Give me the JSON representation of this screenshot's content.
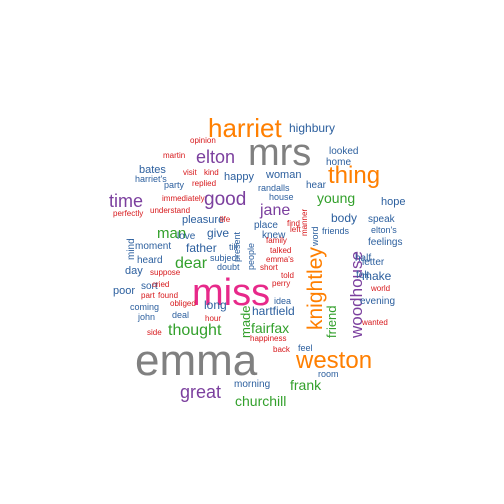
{
  "palette": {
    "gray": "#808080",
    "orange": "#FF7F00",
    "purple": "#7B3F9E",
    "green": "#33A02C",
    "blue": "#2C5F9E",
    "red": "#D7191C",
    "pink": "#E7298A"
  },
  "words": [
    {
      "text": "emma",
      "color": "gray",
      "weight": 100
    },
    {
      "text": "miss",
      "color": "pink",
      "weight": 88
    },
    {
      "text": "mrs",
      "color": "gray",
      "weight": 75
    },
    {
      "text": "harriet",
      "color": "orange",
      "weight": 60
    },
    {
      "text": "weston",
      "color": "orange",
      "weight": 58
    },
    {
      "text": "knightley",
      "color": "orange",
      "weight": 56
    },
    {
      "text": "thing",
      "color": "orange",
      "weight": 56
    },
    {
      "text": "elton",
      "color": "purple",
      "weight": 48
    },
    {
      "text": "woodhouse",
      "color": "purple",
      "weight": 46
    },
    {
      "text": "good",
      "color": "purple",
      "weight": 46
    },
    {
      "text": "time",
      "color": "purple",
      "weight": 44
    },
    {
      "text": "great",
      "color": "purple",
      "weight": 44
    },
    {
      "text": "jane",
      "color": "purple",
      "weight": 42
    },
    {
      "text": "frank",
      "color": "green",
      "weight": 36
    },
    {
      "text": "thought",
      "color": "green",
      "weight": 36
    },
    {
      "text": "dear",
      "color": "green",
      "weight": 36
    },
    {
      "text": "man",
      "color": "green",
      "weight": 35
    },
    {
      "text": "churchill",
      "color": "green",
      "weight": 35
    },
    {
      "text": "young",
      "color": "green",
      "weight": 33
    },
    {
      "text": "fairfax",
      "color": "green",
      "weight": 32
    },
    {
      "text": "made",
      "color": "green",
      "weight": 32
    },
    {
      "text": "friend",
      "color": "green",
      "weight": 31
    },
    {
      "text": "highbury",
      "color": "blue",
      "weight": 22
    },
    {
      "text": "bates",
      "color": "blue",
      "weight": 22
    },
    {
      "text": "happy",
      "color": "blue",
      "weight": 22
    },
    {
      "text": "woman",
      "color": "blue",
      "weight": 22
    },
    {
      "text": "hartfield",
      "color": "blue",
      "weight": 22
    },
    {
      "text": "father",
      "color": "blue",
      "weight": 22
    },
    {
      "text": "long",
      "color": "blue",
      "weight": 22
    },
    {
      "text": "give",
      "color": "blue",
      "weight": 22
    },
    {
      "text": "body",
      "color": "blue",
      "weight": 22
    },
    {
      "text": "hope",
      "color": "blue",
      "weight": 21
    },
    {
      "text": "make",
      "color": "blue",
      "weight": 21
    },
    {
      "text": "hear",
      "color": "blue",
      "weight": 20
    },
    {
      "text": "home",
      "color": "blue",
      "weight": 20
    },
    {
      "text": "mind",
      "color": "blue",
      "weight": 20
    },
    {
      "text": "day",
      "color": "blue",
      "weight": 20
    },
    {
      "text": "poor",
      "color": "blue",
      "weight": 20
    },
    {
      "text": "felt",
      "color": "blue",
      "weight": 20
    },
    {
      "text": "half",
      "color": "blue",
      "weight": 20
    },
    {
      "text": "pleasure",
      "color": "blue",
      "weight": 20
    },
    {
      "text": "love",
      "color": "blue",
      "weight": 20
    },
    {
      "text": "moment",
      "color": "blue",
      "weight": 20
    },
    {
      "text": "heard",
      "color": "blue",
      "weight": 20
    },
    {
      "text": "sort",
      "color": "blue",
      "weight": 20
    },
    {
      "text": "morning",
      "color": "blue",
      "weight": 19
    },
    {
      "text": "looked",
      "color": "blue",
      "weight": 19
    },
    {
      "text": "speak",
      "color": "blue",
      "weight": 19
    },
    {
      "text": "feelings",
      "color": "blue",
      "weight": 19
    },
    {
      "text": "letter",
      "color": "blue",
      "weight": 19
    },
    {
      "text": "evening",
      "color": "blue",
      "weight": 19
    },
    {
      "text": "elton's",
      "color": "blue",
      "weight": 18
    },
    {
      "text": "friends",
      "color": "blue",
      "weight": 18
    },
    {
      "text": "place",
      "color": "blue",
      "weight": 18
    },
    {
      "text": "knew",
      "color": "blue",
      "weight": 18
    },
    {
      "text": "randalls",
      "color": "blue",
      "weight": 18
    },
    {
      "text": "harriet's",
      "color": "blue",
      "weight": 18
    },
    {
      "text": "party",
      "color": "blue",
      "weight": 18
    },
    {
      "text": "subject",
      "color": "blue",
      "weight": 18
    },
    {
      "text": "doubt",
      "color": "blue",
      "weight": 18
    },
    {
      "text": "idea",
      "color": "blue",
      "weight": 18
    },
    {
      "text": "feel",
      "color": "blue",
      "weight": 18
    },
    {
      "text": "coming",
      "color": "blue",
      "weight": 18
    },
    {
      "text": "john",
      "color": "blue",
      "weight": 18
    },
    {
      "text": "deal",
      "color": "blue",
      "weight": 18
    },
    {
      "text": "till",
      "color": "blue",
      "weight": 17
    },
    {
      "text": "present",
      "color": "blue",
      "weight": 17
    },
    {
      "text": "people",
      "color": "blue",
      "weight": 17
    },
    {
      "text": "house",
      "color": "blue",
      "weight": 17
    },
    {
      "text": "word",
      "color": "blue",
      "weight": 17
    },
    {
      "text": "room",
      "color": "blue",
      "weight": 17
    },
    {
      "text": "opinion",
      "color": "red",
      "weight": 14
    },
    {
      "text": "martin",
      "color": "red",
      "weight": 14
    },
    {
      "text": "visit",
      "color": "red",
      "weight": 14
    },
    {
      "text": "kind",
      "color": "red",
      "weight": 14
    },
    {
      "text": "replied",
      "color": "red",
      "weight": 14
    },
    {
      "text": "immediately",
      "color": "red",
      "weight": 14
    },
    {
      "text": "perfectly",
      "color": "red",
      "weight": 14
    },
    {
      "text": "understand",
      "color": "red",
      "weight": 14
    },
    {
      "text": "life",
      "color": "red",
      "weight": 14
    },
    {
      "text": "find",
      "color": "red",
      "weight": 14
    },
    {
      "text": "left",
      "color": "red",
      "weight": 14
    },
    {
      "text": "manner",
      "color": "red",
      "weight": 14
    },
    {
      "text": "family",
      "color": "red",
      "weight": 14
    },
    {
      "text": "talked",
      "color": "red",
      "weight": 14
    },
    {
      "text": "emma's",
      "color": "red",
      "weight": 14
    },
    {
      "text": "short",
      "color": "red",
      "weight": 14
    },
    {
      "text": "told",
      "color": "red",
      "weight": 14
    },
    {
      "text": "perry",
      "color": "red",
      "weight": 14
    },
    {
      "text": "suppose",
      "color": "red",
      "weight": 14
    },
    {
      "text": "cried",
      "color": "red",
      "weight": 14
    },
    {
      "text": "part",
      "color": "red",
      "weight": 14
    },
    {
      "text": "obliged",
      "color": "red",
      "weight": 14
    },
    {
      "text": "found",
      "color": "red",
      "weight": 14
    },
    {
      "text": "hour",
      "color": "red",
      "weight": 14
    },
    {
      "text": "side",
      "color": "red",
      "weight": 14
    },
    {
      "text": "happiness",
      "color": "red",
      "weight": 14
    },
    {
      "text": "back",
      "color": "red",
      "weight": 14
    },
    {
      "text": "world",
      "color": "red",
      "weight": 14
    },
    {
      "text": "wanted",
      "color": "red",
      "weight": 14
    }
  ]
}
